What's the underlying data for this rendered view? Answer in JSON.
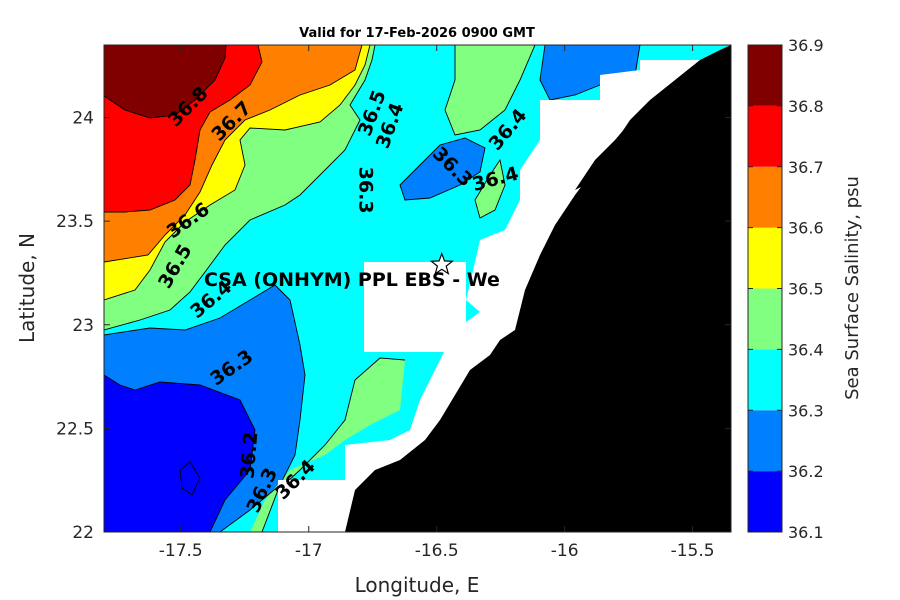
{
  "title": "Valid for 17-Feb-2026 0900 GMT",
  "xlabel": "Longitude, E",
  "ylabel": "Latitude, N",
  "colorbar_label": "Sea Surface Salinity, psu",
  "site_label": "CSA (ONHYM) PPL EBS  - We",
  "map": {
    "xlim": [
      -17.8,
      -15.35
    ],
    "ylim": [
      22,
      24.35
    ],
    "x_ticks": [
      "-17.5",
      "-17",
      "-16.5",
      "-16",
      "-15.5"
    ],
    "y_ticks": [
      "22",
      "22.5",
      "23",
      "23.5",
      "24"
    ],
    "site_marker": "star-icon",
    "site_position": {
      "lon": -16.48,
      "lat": 23.29
    },
    "land_color": "#000000",
    "mask_color": "#ffffff"
  },
  "colorbar": {
    "levels": [
      "36.1",
      "36.2",
      "36.3",
      "36.4",
      "36.5",
      "36.6",
      "36.7",
      "36.8",
      "36.9"
    ],
    "colors": [
      "#0000ff",
      "#0080ff",
      "#00ffff",
      "#80ff80",
      "#ffff00",
      "#ff8000",
      "#ff0000",
      "#800000"
    ]
  },
  "contour_labels": [
    {
      "text": "36.8",
      "lon": -17.47,
      "lat": 24.05,
      "angle": -45
    },
    {
      "text": "36.7",
      "lon": -17.3,
      "lat": 23.98,
      "angle": -45
    },
    {
      "text": "36.6",
      "lon": -17.47,
      "lat": 23.5,
      "angle": -35
    },
    {
      "text": "36.5",
      "lon": -17.52,
      "lat": 23.28,
      "angle": -60
    },
    {
      "text": "36.4",
      "lon": -17.38,
      "lat": 23.12,
      "angle": -40
    },
    {
      "text": "36.3",
      "lon": -17.3,
      "lat": 22.79,
      "angle": -35
    },
    {
      "text": "36.2",
      "lon": -17.23,
      "lat": 22.37,
      "angle": -85
    },
    {
      "text": "36.3",
      "lon": -17.18,
      "lat": 22.2,
      "angle": -65
    },
    {
      "text": "36.4",
      "lon": -17.05,
      "lat": 22.25,
      "angle": -45
    },
    {
      "text": "36.3",
      "lon": -16.78,
      "lat": 23.65,
      "angle": 90
    },
    {
      "text": "36.5",
      "lon": -16.75,
      "lat": 24.02,
      "angle": -70
    },
    {
      "text": "36.4",
      "lon": -16.68,
      "lat": 23.96,
      "angle": -70
    },
    {
      "text": "36.3",
      "lon": -16.44,
      "lat": 23.76,
      "angle": 45
    },
    {
      "text": "36.4",
      "lon": -16.27,
      "lat": 23.7,
      "angle": -15
    },
    {
      "text": "36.4",
      "lon": -16.22,
      "lat": 23.94,
      "angle": -50
    }
  ]
}
